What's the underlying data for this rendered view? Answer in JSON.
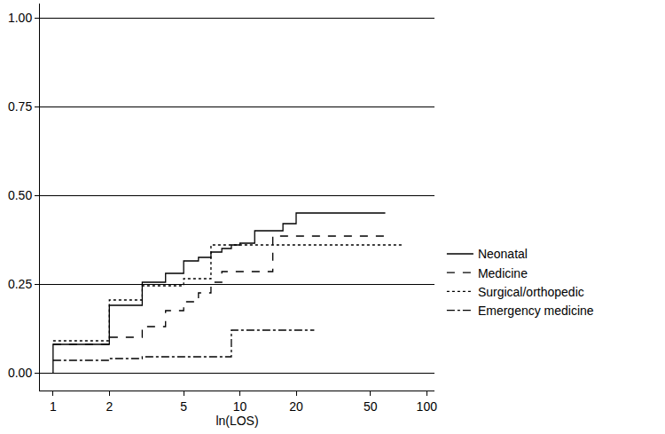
{
  "chart_data": {
    "type": "line",
    "xlabel": "ln(LOS)",
    "log": "x",
    "grid": true,
    "legend": "right",
    "xlim": [
      0.85,
      110
    ],
    "xticks": [
      1,
      2,
      5,
      10,
      20,
      50,
      100
    ],
    "ylim": [
      -0.05,
      1.04
    ],
    "yticks": [
      {
        "value": 0,
        "label": "0.00"
      },
      {
        "value": 0.25,
        "label": "0.25"
      },
      {
        "value": 0.5,
        "label": "0.50"
      },
      {
        "value": 0.75,
        "label": "0.75"
      },
      {
        "value": 1,
        "label": "1.00"
      }
    ],
    "series": [
      {
        "name": "Neonatal",
        "color": "#000000",
        "line_style": "solid",
        "x": [
          1,
          1,
          2,
          3,
          4,
          5,
          6,
          7,
          8,
          9,
          10,
          12,
          17,
          20,
          60
        ],
        "values": [
          0,
          0.08,
          0.19,
          0.255,
          0.28,
          0.315,
          0.325,
          0.34,
          0.35,
          0.36,
          0.365,
          0.4,
          0.42,
          0.45,
          0.45
        ]
      },
      {
        "name": "Medicine",
        "color": "#000000",
        "line_style": "dash",
        "x": [
          1,
          2,
          3,
          4,
          5,
          6,
          7,
          8,
          15,
          60
        ],
        "values": [
          0.08,
          0.1,
          0.13,
          0.175,
          0.2,
          0.225,
          0.255,
          0.285,
          0.385,
          0.385
        ]
      },
      {
        "name": "Surgical/orthopedic",
        "color": "#000000",
        "line_style": "dot",
        "x": [
          1,
          2,
          3,
          5,
          7,
          75
        ],
        "values": [
          0.09,
          0.205,
          0.245,
          0.265,
          0.36,
          0.36
        ]
      },
      {
        "name": "Emergency medicine",
        "color": "#000000",
        "line_style": "dashdot",
        "x": [
          1,
          2,
          3,
          9,
          25
        ],
        "values": [
          0.035,
          0.04,
          0.045,
          0.12,
          0.12
        ]
      }
    ]
  }
}
